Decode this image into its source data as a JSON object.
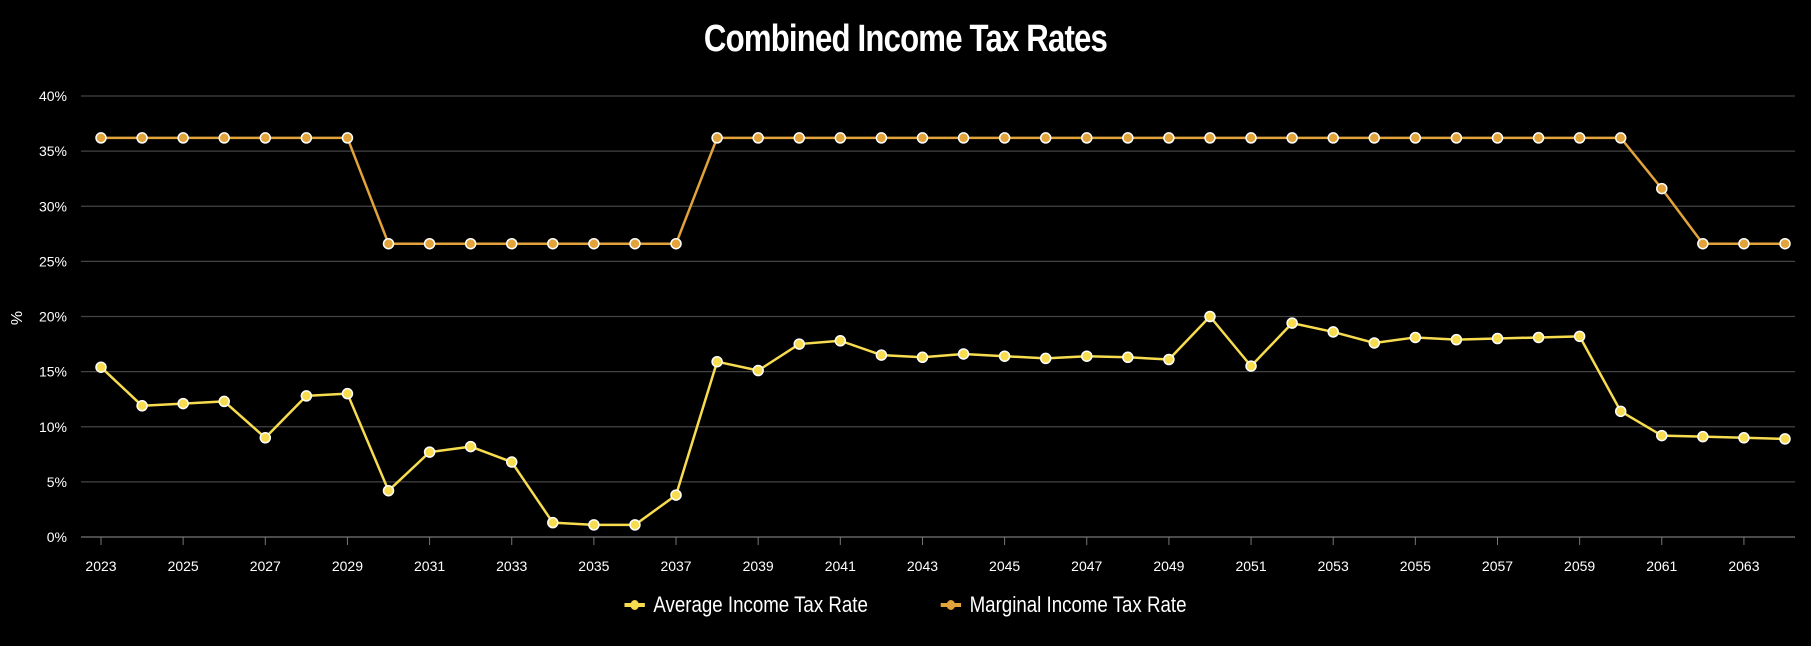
{
  "chart_data": {
    "type": "line",
    "title": "Combined Income Tax Rates",
    "ylabel": "%",
    "xlabel": "",
    "ylim": [
      0,
      40
    ],
    "yticks": [
      "0%",
      "5%",
      "10%",
      "15%",
      "20%",
      "25%",
      "30%",
      "35%",
      "40%"
    ],
    "x": [
      2023,
      2024,
      2025,
      2026,
      2027,
      2028,
      2029,
      2030,
      2031,
      2032,
      2033,
      2034,
      2035,
      2036,
      2037,
      2038,
      2039,
      2040,
      2041,
      2042,
      2043,
      2044,
      2045,
      2046,
      2047,
      2048,
      2049,
      2050,
      2051,
      2052,
      2053,
      2054,
      2055,
      2056,
      2057,
      2058,
      2059,
      2060,
      2061,
      2062,
      2063,
      2064
    ],
    "xticks": [
      "2023",
      "2025",
      "2027",
      "2029",
      "2031",
      "2033",
      "2035",
      "2037",
      "2039",
      "2041",
      "2043",
      "2045",
      "2047",
      "2049",
      "2051",
      "2053",
      "2055",
      "2057",
      "2059",
      "2061",
      "2063"
    ],
    "grid": true,
    "legend_position": "bottom",
    "series": [
      {
        "name": "Average Income Tax Rate",
        "color": "#f7dc4f",
        "values": [
          15.4,
          11.9,
          12.1,
          12.3,
          9.0,
          12.8,
          13.0,
          4.2,
          7.7,
          8.2,
          6.8,
          1.3,
          1.1,
          1.1,
          3.8,
          15.9,
          15.1,
          17.5,
          17.8,
          16.5,
          16.3,
          16.6,
          16.4,
          16.2,
          16.4,
          16.3,
          16.1,
          20.0,
          15.5,
          19.4,
          18.6,
          17.6,
          18.1,
          17.9,
          18.0,
          18.1,
          18.2,
          11.4,
          9.2,
          9.1,
          9.0,
          8.9
        ]
      },
      {
        "name": "Marginal Income Tax Rate",
        "color": "#e2a33a",
        "values": [
          36.2,
          36.2,
          36.2,
          36.2,
          36.2,
          36.2,
          36.2,
          26.6,
          26.6,
          26.6,
          26.6,
          26.6,
          26.6,
          26.6,
          26.6,
          36.2,
          36.2,
          36.2,
          36.2,
          36.2,
          36.2,
          36.2,
          36.2,
          36.2,
          36.2,
          36.2,
          36.2,
          36.2,
          36.2,
          36.2,
          36.2,
          36.2,
          36.2,
          36.2,
          36.2,
          36.2,
          36.2,
          36.2,
          31.6,
          26.6,
          26.6,
          26.6
        ]
      }
    ]
  }
}
